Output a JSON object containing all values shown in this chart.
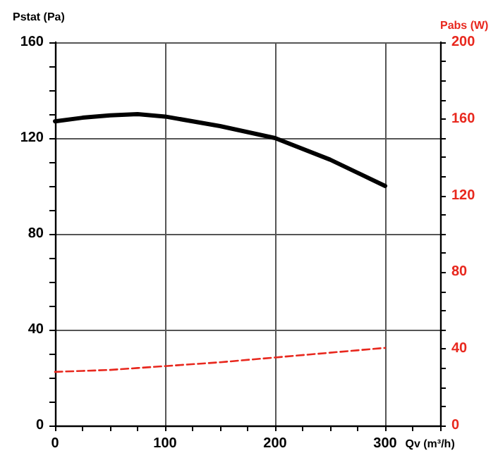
{
  "chart_data": {
    "type": "line",
    "xlabel": "Qv (m³/h)",
    "ylabel": "Pstat (Pa)",
    "y2label": "Pabs (W)",
    "x": [
      0,
      25,
      50,
      75,
      100,
      150,
      200,
      250,
      300
    ],
    "series": [
      {
        "color": "#000000",
        "values": [
          127,
          128.5,
          129.5,
          130,
          129,
          125,
          120,
          111,
          100
        ],
        "line_style": "solid"
      },
      {
        "color": "#e8281e",
        "axis": "y2",
        "values": [
          28,
          28.5,
          29,
          30,
          31,
          33,
          35.5,
          38,
          40.5
        ],
        "line_style": "dashed"
      }
    ],
    "xlim": [
      0,
      350
    ],
    "xticks": [
      0,
      {
        "value": 25,
        "label": null
      },
      {
        "value": 50,
        "label": null
      },
      {
        "value": 75,
        "label": null
      },
      100,
      {
        "value": 125,
        "label": null
      },
      {
        "value": 150,
        "label": null
      },
      {
        "value": 175,
        "label": null
      },
      200,
      {
        "value": 225,
        "label": null
      },
      {
        "value": 250,
        "label": null
      },
      {
        "value": 275,
        "label": null
      },
      300,
      {
        "value": 325,
        "label": null
      },
      {
        "value": 350,
        "label": null
      }
    ],
    "ylim": [
      0,
      160
    ],
    "yticks": [
      0,
      {
        "value": 10,
        "label": null
      },
      {
        "value": 20,
        "label": null
      },
      {
        "value": 30,
        "label": null
      },
      40,
      {
        "value": 50,
        "label": null
      },
      {
        "value": 60,
        "label": null
      },
      {
        "value": 70,
        "label": null
      },
      80,
      {
        "value": 90,
        "label": null
      },
      {
        "value": 100,
        "label": null
      },
      {
        "value": 110,
        "label": null
      },
      120,
      {
        "value": 130,
        "label": null
      },
      {
        "value": 140,
        "label": null
      },
      {
        "value": 150,
        "label": null
      },
      160
    ],
    "y2lim": [
      0,
      200
    ],
    "y2ticks": [
      0,
      {
        "value": 10,
        "label": null
      },
      {
        "value": 20,
        "label": null
      },
      {
        "value": 30,
        "label": null
      },
      40,
      {
        "value": 50,
        "label": null
      },
      {
        "value": 60,
        "label": null
      },
      {
        "value": 70,
        "label": null
      },
      80,
      {
        "value": 90,
        "label": null
      },
      {
        "value": 100,
        "label": null
      },
      {
        "value": 110,
        "label": null
      },
      120,
      {
        "value": 130,
        "label": null
      },
      {
        "value": 140,
        "label": null
      },
      {
        "value": 150,
        "label": null
      },
      160,
      {
        "value": 170,
        "label": null
      },
      {
        "value": 180,
        "label": null
      },
      {
        "value": 190,
        "label": null
      },
      200
    ],
    "grid": true,
    "marker": "none"
  }
}
